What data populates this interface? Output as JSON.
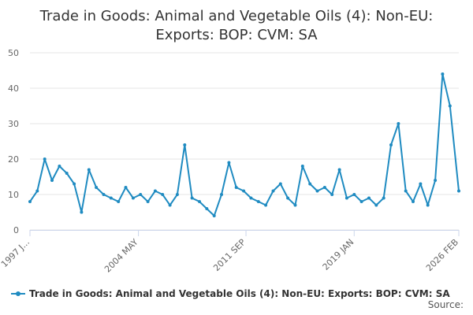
{
  "chart_data": {
    "type": "line",
    "title": "Trade in Goods: Animal and Vegetable Oils (4): Non-EU: Exports: BOP: CVM: SA",
    "title_lines": [
      "Trade in Goods: Animal and Vegetable Oils (4): Non-EU:",
      "Exports: BOP: CVM: SA"
    ],
    "xlabel": "",
    "ylabel": "",
    "ylim": [
      0,
      50
    ],
    "yticks": [
      0,
      10,
      20,
      30,
      40,
      50
    ],
    "xlim": [
      1997.0,
      2026.1
    ],
    "xticks": [
      {
        "value": 1997.0,
        "label": "1997 J..."
      },
      {
        "value": 2004.36,
        "label": "2004 MAY"
      },
      {
        "value": 2011.66,
        "label": "2011 SEP"
      },
      {
        "value": 2019.0,
        "label": "2019 JAN"
      },
      {
        "value": 2026.1,
        "label": "2026 FEB"
      }
    ],
    "grid": true,
    "legend_position": "bottom",
    "credits": "Source:",
    "series": [
      {
        "name": "Trade in Goods: Animal and Vegetable Oils (4): Non-EU: Exports: BOP: CVM: SA",
        "color": "#1f8bc1",
        "x": [
          1997.0,
          1997.5,
          1998.0,
          1998.5,
          1999.0,
          1999.5,
          2000.0,
          2000.5,
          2001.0,
          2001.5,
          2002.0,
          2002.5,
          2003.0,
          2003.5,
          2004.0,
          2004.5,
          2005.0,
          2005.5,
          2006.0,
          2006.5,
          2007.0,
          2007.5,
          2008.0,
          2008.5,
          2009.0,
          2009.5,
          2010.0,
          2010.5,
          2011.0,
          2011.5,
          2012.0,
          2012.5,
          2013.0,
          2013.5,
          2014.0,
          2014.5,
          2015.0,
          2015.5,
          2016.0,
          2016.5,
          2017.0,
          2017.5,
          2018.0,
          2018.5,
          2019.0,
          2019.5,
          2020.0,
          2020.5,
          2021.0,
          2021.5,
          2022.0,
          2022.5,
          2023.0,
          2023.5,
          2024.0,
          2024.5,
          2025.0,
          2025.5,
          2026.1
        ],
        "values": [
          8,
          11,
          20,
          14,
          18,
          16,
          13,
          5,
          17,
          12,
          10,
          9,
          8,
          12,
          9,
          10,
          8,
          11,
          10,
          7,
          10,
          24,
          9,
          8,
          6,
          4,
          10,
          19,
          12,
          11,
          9,
          8,
          7,
          11,
          13,
          9,
          7,
          18,
          13,
          11,
          12,
          10,
          17,
          9,
          10,
          8,
          9,
          7,
          9,
          24,
          30,
          11,
          8,
          13,
          7,
          14,
          44,
          35,
          11
        ]
      }
    ]
  }
}
